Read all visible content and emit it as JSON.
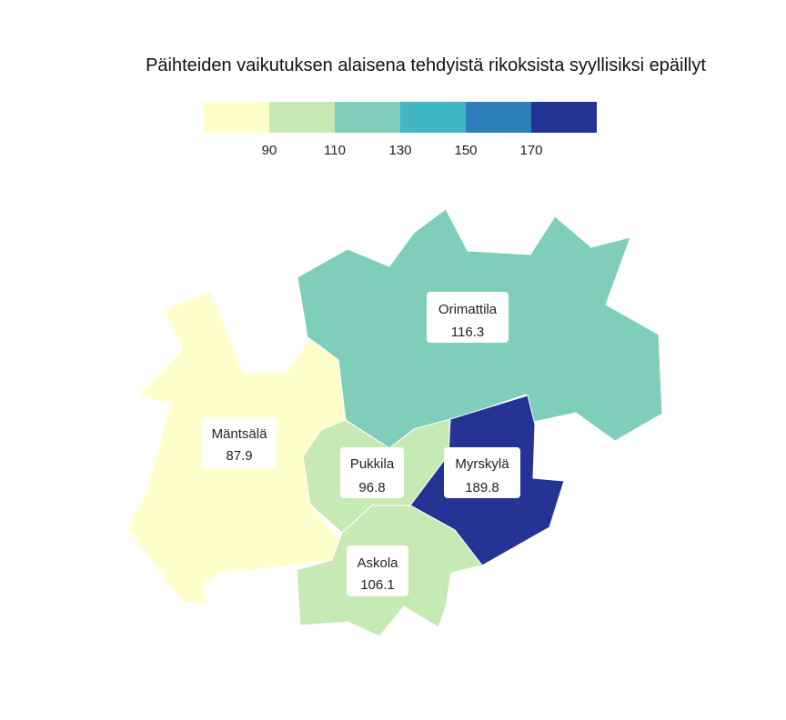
{
  "title": "Päihteiden vaikutuksen alaisena tehdyistä rikoksista syyllisiksi epäillyt",
  "legend": {
    "colors": [
      "#ffffcc",
      "#c7e9b4",
      "#7fcdbb",
      "#41b6c4",
      "#2c7fb8",
      "#253494"
    ],
    "ticks": [
      "90",
      "110",
      "130",
      "150",
      "170"
    ]
  },
  "regions": [
    {
      "name": "Orimattila",
      "value": "116.3",
      "color": "#7fcdbb"
    },
    {
      "name": "Mäntsälä",
      "value": "87.9",
      "color": "#ffffcc"
    },
    {
      "name": "Pukkila",
      "value": "96.8",
      "color": "#c7e9b4"
    },
    {
      "name": "Myrskylä",
      "value": "189.8",
      "color": "#253494"
    },
    {
      "name": "Askola",
      "value": "106.1",
      "color": "#c7e9b4"
    }
  ]
}
